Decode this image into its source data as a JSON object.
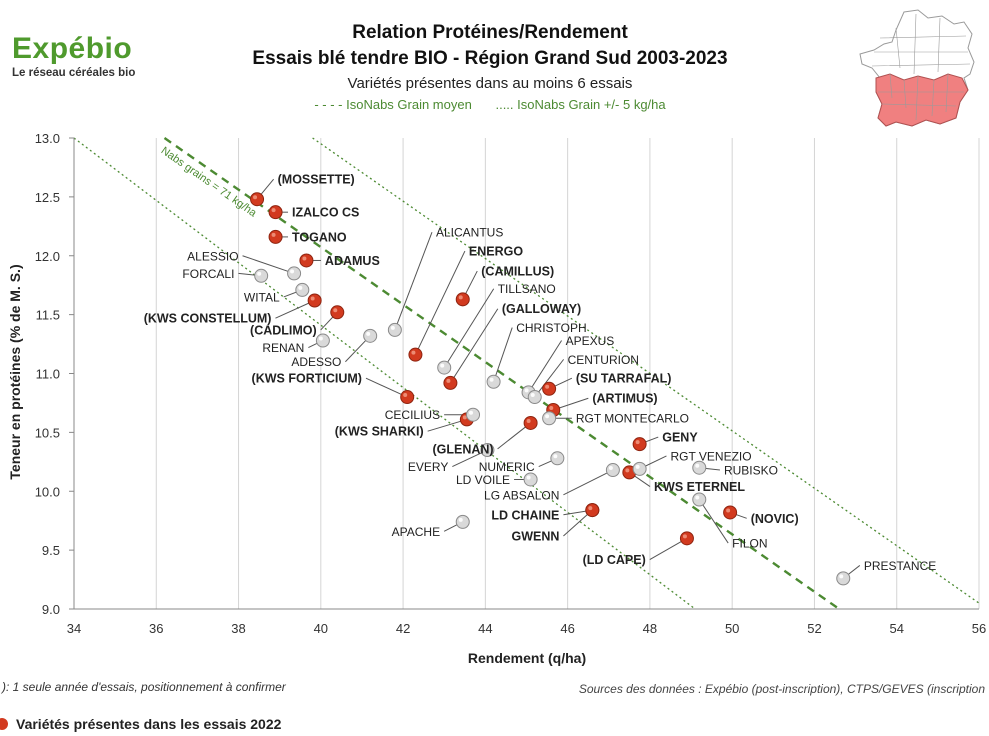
{
  "header": {
    "logo_name": "Expébio",
    "logo_sub": "Le réseau céréales bio",
    "title_line1": "Relation Protéines/Rendement",
    "title_line2": "Essais blé tendre BIO - Région Grand Sud 2003-2023",
    "subtitle": "Variétés présentes dans au moins 6 essais",
    "legend_mean": "- - - - IsoNabs Grain moyen",
    "legend_band": "..... IsoNabs Grain +/- 5 kg/ha"
  },
  "footer": {
    "note": "): 1 seule année d'essais, positionnement à confirmer",
    "sources": "Sources des données : Expébio (post-inscription), CTPS/GEVES (inscription",
    "legend_2022": "Variétés présentes dans les essais 2022"
  },
  "colors": {
    "red_point": "#d23a1f",
    "grey_point": "#d9d9d9",
    "iso_line": "#4c8a32",
    "logo_green": "#4f9a2d",
    "map_region": "#f08080"
  },
  "chart_data": {
    "type": "scatter",
    "xlabel": "Rendement (q/ha)",
    "ylabel": "Teneur en protéines (% de M. S.)",
    "xlim": [
      34,
      56
    ],
    "ylim": [
      9.0,
      13.0
    ],
    "xticks": [
      "34",
      "36",
      "38",
      "40",
      "42",
      "44",
      "46",
      "48",
      "50",
      "52",
      "54",
      "56"
    ],
    "yticks": [
      "9.0",
      "9.5",
      "10.0",
      "10.5",
      "11.0",
      "11.5",
      "12.0",
      "12.5",
      "13.0"
    ],
    "grid": "vertical",
    "line_label": "Nabs grains = 71 kg/ha",
    "iso_lines": [
      {
        "kind": "mean",
        "style": "dashed",
        "points": [
          [
            36.2,
            13.0
          ],
          [
            52.6,
            9.0
          ]
        ]
      },
      {
        "kind": "minus5",
        "style": "dotted",
        "points": [
          [
            34.0,
            13.0
          ],
          [
            49.1,
            9.0
          ]
        ]
      },
      {
        "kind": "plus5",
        "style": "dotted",
        "points": [
          [
            39.8,
            13.0
          ],
          [
            56.0,
            9.05
          ]
        ]
      }
    ],
    "series": [
      {
        "name": "Variétés présentes dans les essais 2022",
        "color": "#d23a1f",
        "points": [
          {
            "label": "(MOSSETTE)",
            "x": 38.45,
            "y": 12.48,
            "lx": 38.95,
            "ly": 12.65,
            "anchor": "start",
            "bold": true
          },
          {
            "label": "IZALCO CS",
            "x": 38.9,
            "y": 12.37,
            "lx": 39.3,
            "ly": 12.37,
            "anchor": "start",
            "bold": true
          },
          {
            "label": "TOGANO",
            "x": 38.9,
            "y": 12.16,
            "lx": 39.3,
            "ly": 12.16,
            "anchor": "start",
            "bold": true
          },
          {
            "label": "ADAMUS",
            "x": 39.65,
            "y": 11.96,
            "lx": 40.1,
            "ly": 11.96,
            "anchor": "start",
            "bold": true
          },
          {
            "label": "(KWS CONSTELLUM)",
            "x": 39.85,
            "y": 11.62,
            "lx": 38.8,
            "ly": 11.47,
            "anchor": "end",
            "bold": true
          },
          {
            "label": "(CADLIMO)",
            "x": 40.4,
            "y": 11.52,
            "lx": 39.9,
            "ly": 11.37,
            "anchor": "end",
            "bold": true
          },
          {
            "label": "(KWS FORTICIUM)",
            "x": 42.1,
            "y": 10.8,
            "lx": 41.0,
            "ly": 10.96,
            "anchor": "end",
            "bold": true
          },
          {
            "label": "ENERGO",
            "x": 42.3,
            "y": 11.16,
            "lx": 43.6,
            "ly": 12.04,
            "anchor": "start",
            "bold": true
          },
          {
            "label": "(CAMILLUS)",
            "x": 43.45,
            "y": 11.63,
            "lx": 43.9,
            "ly": 11.87,
            "anchor": "start",
            "bold": true
          },
          {
            "label": "(GALLOWAY)",
            "x": 43.15,
            "y": 10.92,
            "lx": 44.4,
            "ly": 11.55,
            "anchor": "start",
            "bold": true
          },
          {
            "label": "(KWS SHARKI)",
            "x": 43.55,
            "y": 10.61,
            "lx": 42.5,
            "ly": 10.51,
            "anchor": "end",
            "bold": true
          },
          {
            "label": "(GLENAN)",
            "x": 45.1,
            "y": 10.58,
            "lx": 44.2,
            "ly": 10.36,
            "anchor": "end",
            "bold": true
          },
          {
            "label": "(SU TARRAFAL)",
            "x": 45.55,
            "y": 10.87,
            "lx": 46.2,
            "ly": 10.96,
            "anchor": "start",
            "bold": true
          },
          {
            "label": "(ARTIMUS)",
            "x": 45.65,
            "y": 10.69,
            "lx": 46.6,
            "ly": 10.79,
            "anchor": "start",
            "bold": true
          },
          {
            "label": "GENY",
            "x": 47.75,
            "y": 10.4,
            "lx": 48.3,
            "ly": 10.46,
            "anchor": "start",
            "bold": true
          },
          {
            "label": "KWS ETERNEL",
            "x": 47.5,
            "y": 10.16,
            "lx": 48.1,
            "ly": 10.04,
            "anchor": "start",
            "bold": true
          },
          {
            "label": "(NOVIC)",
            "x": 49.95,
            "y": 9.82,
            "lx": 50.45,
            "ly": 9.77,
            "anchor": "start",
            "bold": true
          },
          {
            "label": "LD CHAINE",
            "x": 46.6,
            "y": 9.84,
            "lx": 45.8,
            "ly": 9.8,
            "anchor": "end",
            "bold": true
          },
          {
            "label": "GWENN",
            "x": 46.6,
            "y": 9.84,
            "lx": 45.8,
            "ly": 9.62,
            "anchor": "end",
            "bold": true
          },
          {
            "label": "(LD CAPE)",
            "x": 48.9,
            "y": 9.6,
            "lx": 47.9,
            "ly": 9.42,
            "anchor": "end",
            "bold": true
          }
        ]
      },
      {
        "name": "",
        "color": "#d9d9d9",
        "points": [
          {
            "label": "ALESSIO",
            "x": 39.35,
            "y": 11.85,
            "lx": 38.0,
            "ly": 12.0,
            "anchor": "end",
            "bold": false
          },
          {
            "label": "FORCALI",
            "x": 38.55,
            "y": 11.83,
            "lx": 37.9,
            "ly": 11.85,
            "anchor": "end",
            "bold": false
          },
          {
            "label": "WITAL",
            "x": 39.55,
            "y": 11.71,
            "lx": 39.0,
            "ly": 11.65,
            "anchor": "end",
            "bold": false
          },
          {
            "label": "RENAN",
            "x": 40.05,
            "y": 11.28,
            "lx": 39.6,
            "ly": 11.22,
            "anchor": "end",
            "bold": false
          },
          {
            "label": "ADESSO",
            "x": 41.2,
            "y": 11.32,
            "lx": 40.5,
            "ly": 11.1,
            "anchor": "end",
            "bold": false
          },
          {
            "label": "ALICANTUS",
            "x": 41.8,
            "y": 11.37,
            "lx": 42.8,
            "ly": 12.2,
            "anchor": "start",
            "bold": false
          },
          {
            "label": "TILLSANO",
            "x": 43.0,
            "y": 11.05,
            "lx": 44.3,
            "ly": 11.72,
            "anchor": "start",
            "bold": false
          },
          {
            "label": "CHRISTOPH",
            "x": 44.2,
            "y": 10.93,
            "lx": 44.75,
            "ly": 11.39,
            "anchor": "start",
            "bold": false
          },
          {
            "label": "APEXUS",
            "x": 45.05,
            "y": 10.84,
            "lx": 45.95,
            "ly": 11.28,
            "anchor": "start",
            "bold": false
          },
          {
            "label": "CENTURION",
            "x": 45.2,
            "y": 10.8,
            "lx": 46.0,
            "ly": 11.12,
            "anchor": "start",
            "bold": false
          },
          {
            "label": "CECILIUS",
            "x": 43.7,
            "y": 10.65,
            "lx": 42.9,
            "ly": 10.65,
            "anchor": "end",
            "bold": false
          },
          {
            "label": "RGT MONTECARLO",
            "x": 45.55,
            "y": 10.62,
            "lx": 46.2,
            "ly": 10.62,
            "anchor": "start",
            "bold": false
          },
          {
            "label": "EVERY",
            "x": 44.05,
            "y": 10.35,
            "lx": 43.1,
            "ly": 10.21,
            "anchor": "end",
            "bold": false
          },
          {
            "label": "NUMERIC",
            "x": 45.75,
            "y": 10.28,
            "lx": 45.2,
            "ly": 10.21,
            "anchor": "end",
            "bold": false
          },
          {
            "label": "LD VOILE",
            "x": 45.1,
            "y": 10.1,
            "lx": 44.6,
            "ly": 10.1,
            "anchor": "end",
            "bold": false
          },
          {
            "label": "LG ABSALON",
            "x": 47.1,
            "y": 10.18,
            "lx": 45.8,
            "ly": 9.97,
            "anchor": "end",
            "bold": false
          },
          {
            "label": "RGT VENEZIO",
            "x": 47.75,
            "y": 10.19,
            "lx": 48.5,
            "ly": 10.3,
            "anchor": "start",
            "bold": false
          },
          {
            "label": "RUBISKO",
            "x": 49.2,
            "y": 10.2,
            "lx": 49.8,
            "ly": 10.18,
            "anchor": "start",
            "bold": false
          },
          {
            "label": "APACHE",
            "x": 43.45,
            "y": 9.74,
            "lx": 42.9,
            "ly": 9.66,
            "anchor": "end",
            "bold": false
          },
          {
            "label": "FILON",
            "x": 49.2,
            "y": 9.93,
            "lx": 50.0,
            "ly": 9.56,
            "anchor": "start",
            "bold": false
          },
          {
            "label": "PRESTANCE",
            "x": 52.7,
            "y": 9.26,
            "lx": 53.2,
            "ly": 9.37,
            "anchor": "start",
            "bold": false
          }
        ]
      }
    ]
  }
}
